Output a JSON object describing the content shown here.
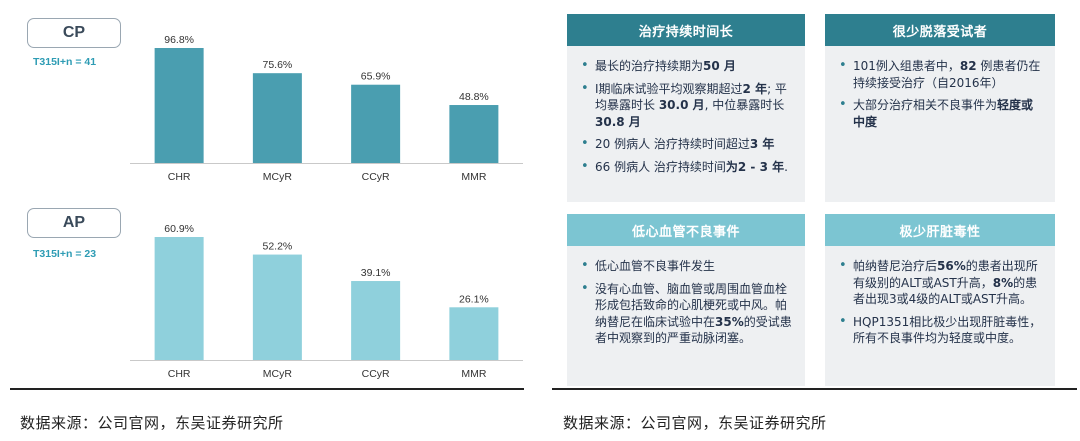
{
  "chart_data": [
    {
      "type": "bar",
      "title": "CP",
      "subtitle": "T315I+n = 41",
      "categories": [
        "CHR",
        "MCyR",
        "CCyR",
        "MMR"
      ],
      "values": [
        96.8,
        75.6,
        65.9,
        48.8
      ],
      "value_labels": [
        "96.8%",
        "75.6%",
        "65.9%",
        "48.8%"
      ],
      "ylim": [
        0,
        100
      ],
      "color": "#4a9eb0",
      "grid": false,
      "xlabel": "",
      "ylabel": ""
    },
    {
      "type": "bar",
      "title": "AP",
      "subtitle": "T315I+n = 23",
      "categories": [
        "CHR",
        "MCyR",
        "CCyR",
        "MMR"
      ],
      "values": [
        60.9,
        52.2,
        39.1,
        26.1
      ],
      "value_labels": [
        "60.9%",
        "52.2%",
        "39.1%",
        "26.1%"
      ],
      "ylim": [
        0,
        100
      ],
      "color": "#8fd0dc",
      "grid": false,
      "xlabel": "",
      "ylabel": ""
    }
  ],
  "charts_meta": {
    "cp": {
      "tag": "CP",
      "sub": "T315I+n = 41"
    },
    "ap": {
      "tag": "AP",
      "sub": "T315I+n = 23"
    }
  },
  "cards": {
    "c1": {
      "title": "治疗持续时间长",
      "color": "#2e7f8f",
      "items": [
        "最长的治疗持续期为<b>50 月</b>",
        "I期临床试验平均观察期超过<b>2 年</b>; 平均暴露时长 <b>30.0 月</b>, 中位暴露时长 <b>30.8 月</b>",
        "20 例病人 治疗持续时间超过<b>3 年</b>",
        "66 例病人 治疗持续时间<b>为2 - 3 年</b>."
      ]
    },
    "c2": {
      "title": "很少脱落受试者",
      "color": "#2e7f8f",
      "items": [
        "101例入组患者中，<b>82</b> 例患者仍在持续接受治疗（自2016年）",
        "大部分治疗相关不良事件为<b>轻度或中度</b>"
      ]
    },
    "c3": {
      "title": "低心血管不良事件",
      "color": "#7cc5d2",
      "items": [
        "低心血管不良事件发生",
        "没有心血管、脑血管或周围血管血栓形成包括致命的心肌梗死或中风。帕纳替尼在临床试验中在<b>35%</b>的受试患者中观察到的严重动脉闭塞。"
      ]
    },
    "c4": {
      "title": "极少肝脏毒性",
      "color": "#7cc5d2",
      "items": [
        "帕纳替尼治疗后<b>56%</b>的患者出现所有级别的ALT或AST升高，<b>8%</b>的患者出现3或4级的ALT或AST升高。",
        "HQP1351相比极少出现肝脏毒性，所有不良事件均为轻度或中度。"
      ]
    }
  },
  "sources": {
    "left": "数据来源：公司官网，东吴证券研究所",
    "right": "数据来源：公司官网，东吴证券研究所"
  }
}
